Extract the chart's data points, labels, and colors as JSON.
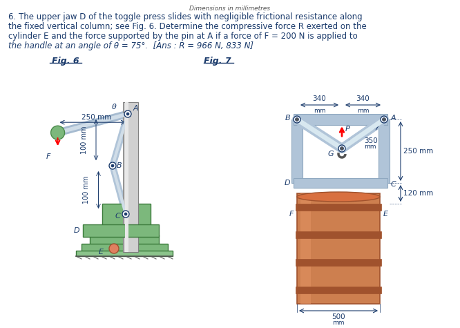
{
  "title_text": "6. The upper jaw D of the toggle press slides with negligible frictional resistance along\nthe fixed vertical column; see Fig. 6. Determine the compressive force R exerted on the\ncylinder E and the force supported by the pin at A if a force of F = 200 N is applied to\nthe handle at an angle of θ = 75°.  [Ans : R = 966 N, 833 N]",
  "header": "Dimensions in millimetres",
  "fig6_label": "Fig. 6",
  "fig7_label": "Fig. 7",
  "text_color": "#1a3a6b",
  "green_color": "#7cb87c",
  "green_light": "#a8d8a8",
  "steel_color": "#b0c4d8",
  "steel_dark": "#8fa8c0",
  "cylinder_color": "#cd7f4f",
  "cylinder_dark": "#a0522d",
  "silver_color": "#c0c0c0",
  "silver_dark": "#909090",
  "bg_color": "#ffffff"
}
